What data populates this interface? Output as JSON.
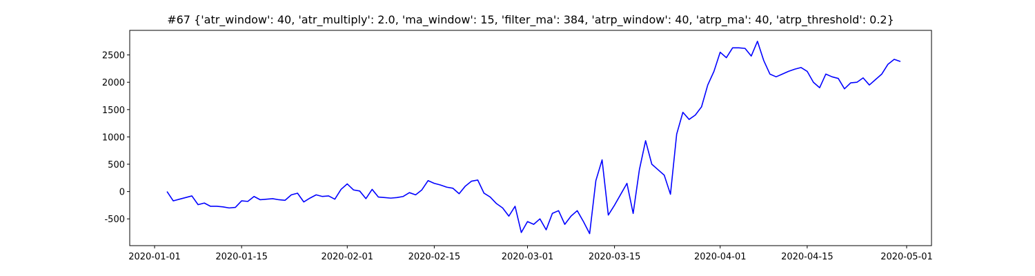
{
  "chart_data": {
    "type": "line",
    "title": "#67 {'atr_window': 40, 'atr_multiply': 2.0, 'ma_window': 15, 'filter_ma': 384, 'atrp_window': 40, 'atrp_ma': 40, 'atrp_threshold': 0.2}",
    "color": "#0000ff",
    "x": [
      "2020-01-03",
      "2020-01-04",
      "2020-01-05",
      "2020-01-06",
      "2020-01-07",
      "2020-01-08",
      "2020-01-09",
      "2020-01-10",
      "2020-01-11",
      "2020-01-12",
      "2020-01-13",
      "2020-01-14",
      "2020-01-15",
      "2020-01-16",
      "2020-01-17",
      "2020-01-18",
      "2020-01-19",
      "2020-01-20",
      "2020-01-21",
      "2020-01-22",
      "2020-01-23",
      "2020-01-24",
      "2020-01-25",
      "2020-01-26",
      "2020-01-27",
      "2020-01-28",
      "2020-01-29",
      "2020-01-30",
      "2020-01-31",
      "2020-02-01",
      "2020-02-02",
      "2020-02-03",
      "2020-02-04",
      "2020-02-05",
      "2020-02-06",
      "2020-02-07",
      "2020-02-08",
      "2020-02-09",
      "2020-02-10",
      "2020-02-11",
      "2020-02-12",
      "2020-02-13",
      "2020-02-14",
      "2020-02-15",
      "2020-02-16",
      "2020-02-17",
      "2020-02-18",
      "2020-02-19",
      "2020-02-20",
      "2020-02-21",
      "2020-02-22",
      "2020-02-23",
      "2020-02-24",
      "2020-02-25",
      "2020-02-26",
      "2020-02-27",
      "2020-02-28",
      "2020-02-29",
      "2020-03-01",
      "2020-03-02",
      "2020-03-03",
      "2020-03-04",
      "2020-03-05",
      "2020-03-06",
      "2020-03-07",
      "2020-03-08",
      "2020-03-09",
      "2020-03-10",
      "2020-03-11",
      "2020-03-12",
      "2020-03-13",
      "2020-03-14",
      "2020-03-15",
      "2020-03-16",
      "2020-03-17",
      "2020-03-18",
      "2020-03-19",
      "2020-03-20",
      "2020-03-21",
      "2020-03-22",
      "2020-03-23",
      "2020-03-24",
      "2020-03-25",
      "2020-03-26",
      "2020-03-27",
      "2020-03-28",
      "2020-03-29",
      "2020-03-30",
      "2020-03-31",
      "2020-04-01",
      "2020-04-02",
      "2020-04-03",
      "2020-04-04",
      "2020-04-05",
      "2020-04-06",
      "2020-04-07",
      "2020-04-08",
      "2020-04-09",
      "2020-04-10",
      "2020-04-11",
      "2020-04-12",
      "2020-04-13",
      "2020-04-14",
      "2020-04-15",
      "2020-04-16",
      "2020-04-17",
      "2020-04-18",
      "2020-04-19",
      "2020-04-20",
      "2020-04-21",
      "2020-04-22",
      "2020-04-23",
      "2020-04-24",
      "2020-04-25",
      "2020-04-26",
      "2020-04-27",
      "2020-04-28",
      "2020-04-29",
      "2020-04-30"
    ],
    "values": [
      0,
      -170,
      -140,
      -110,
      -80,
      -240,
      -210,
      -270,
      -270,
      -280,
      -300,
      -290,
      -170,
      -180,
      -90,
      -150,
      -140,
      -130,
      -150,
      -160,
      -60,
      -30,
      -190,
      -120,
      -60,
      -90,
      -80,
      -140,
      40,
      140,
      30,
      10,
      -130,
      40,
      -100,
      -110,
      -120,
      -110,
      -90,
      -20,
      -60,
      30,
      200,
      150,
      120,
      80,
      60,
      -40,
      100,
      190,
      210,
      -30,
      -100,
      -220,
      -300,
      -450,
      -270,
      -750,
      -550,
      -600,
      -500,
      -700,
      -400,
      -350,
      -600,
      -450,
      -350,
      -550,
      -770,
      200,
      580,
      -430,
      -250,
      -50,
      150,
      -400,
      400,
      930,
      500,
      400,
      300,
      -50,
      1050,
      1450,
      1320,
      1400,
      1550,
      1950,
      2200,
      2550,
      2450,
      2630,
      2630,
      2620,
      2480,
      2750,
      2400,
      2150,
      2100,
      2150,
      2200,
      2240,
      2270,
      2200,
      2000,
      1900,
      2150,
      2100,
      2070,
      1880,
      1990,
      2000,
      2080,
      1950,
      2050,
      2150,
      2330,
      2420,
      2380
    ],
    "xlim": [
      "2019-12-28",
      "2020-05-05"
    ],
    "xticks": [
      "2020-01-01",
      "2020-01-15",
      "2020-02-01",
      "2020-02-15",
      "2020-03-01",
      "2020-03-15",
      "2020-04-01",
      "2020-04-15",
      "2020-05-01"
    ],
    "ylim": [
      -990,
      2950
    ],
    "yticks": [
      -500,
      0,
      500,
      1000,
      1500,
      2000,
      2500
    ]
  }
}
